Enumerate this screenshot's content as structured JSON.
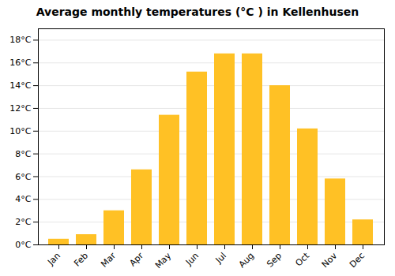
{
  "chart_data": {
    "type": "bar",
    "title": "Average monthly temperatures (°C ) in Kellenhusen",
    "categories": [
      "Jan",
      "Feb",
      "Mar",
      "Apr",
      "May",
      "Jun",
      "Jul",
      "Aug",
      "Sep",
      "Oct",
      "Nov",
      "Dec"
    ],
    "values": [
      0.5,
      0.9,
      3.0,
      6.6,
      11.4,
      15.2,
      16.8,
      16.8,
      14.0,
      10.2,
      5.8,
      2.2
    ],
    "color": "#FFC125",
    "ylim": [
      0,
      19
    ],
    "yticks": [
      {
        "value": 0,
        "label": "0°C"
      },
      {
        "value": 2,
        "label": "2°C"
      },
      {
        "value": 4,
        "label": "4°C"
      },
      {
        "value": 6,
        "label": "6°C"
      },
      {
        "value": 8,
        "label": "8°C"
      },
      {
        "value": 10,
        "label": "10°C"
      },
      {
        "value": 12,
        "label": "12°C"
      },
      {
        "value": 14,
        "label": "14°C"
      },
      {
        "value": 16,
        "label": "16°C"
      },
      {
        "value": 18,
        "label": "18°C"
      }
    ],
    "grid": true
  }
}
